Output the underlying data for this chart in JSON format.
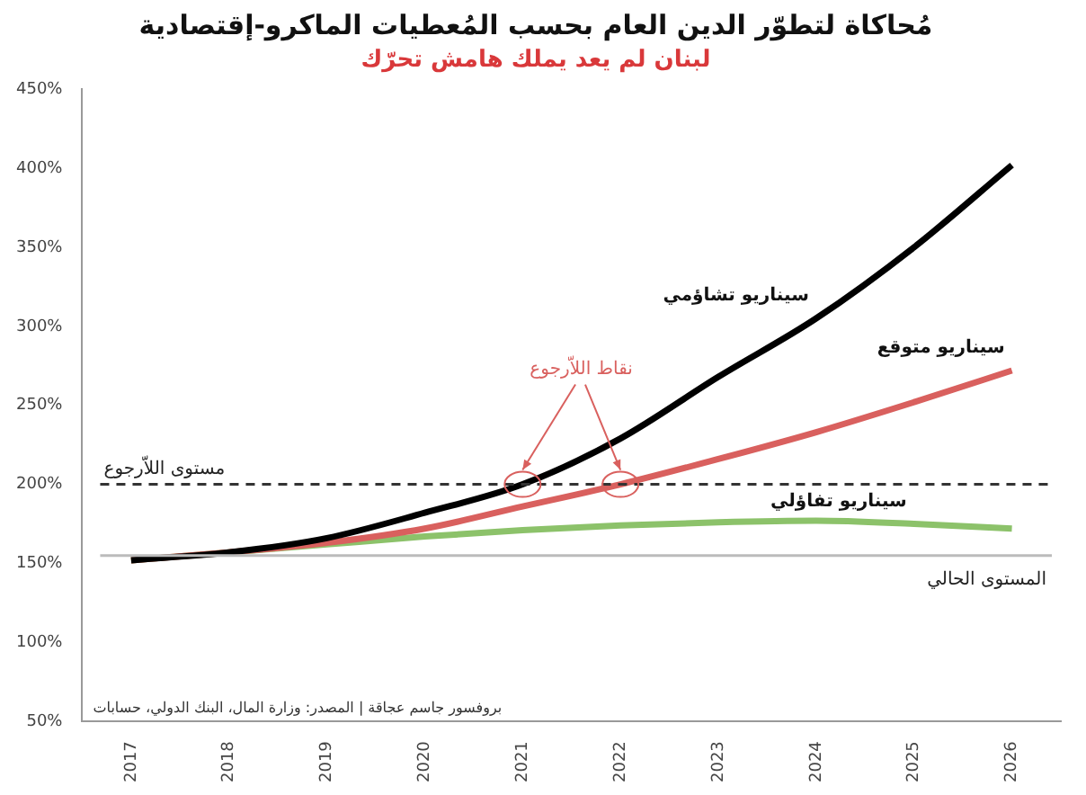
{
  "chart_data": {
    "type": "line",
    "title": "مُحاكاة لتطوّر الدين العام بحسب المُعطيات الماكرو-إقتصادية",
    "subtitle": "لبنان لم يعد يملك هامش تحرّك",
    "categories": [
      "2017",
      "2018",
      "2019",
      "2020",
      "2021",
      "2022",
      "2023",
      "2024",
      "2025",
      "2026"
    ],
    "series": [
      {
        "name": "سيناريو تشاؤمي",
        "color": "#000000",
        "values": [
          152,
          157,
          166,
          182,
          200,
          229,
          268,
          305,
          350,
          402
        ]
      },
      {
        "name": "سيناريو متوقع",
        "color": "#d9605e",
        "values": [
          152,
          157,
          163,
          172,
          186,
          200,
          216,
          233,
          252,
          272
        ]
      },
      {
        "name": "سيناريو تفاؤلي",
        "color": "#8cc26a",
        "values": [
          152,
          157,
          162,
          167,
          171,
          174,
          176,
          177,
          175,
          172
        ]
      }
    ],
    "ylim": [
      50,
      450
    ],
    "yticks": [
      {
        "value": 50,
        "label": "50%"
      },
      {
        "value": 100,
        "label": "100%"
      },
      {
        "value": 150,
        "label": "150%"
      },
      {
        "value": 200,
        "label": "200%"
      },
      {
        "value": 250,
        "label": "250%"
      },
      {
        "value": 300,
        "label": "300%"
      },
      {
        "value": 350,
        "label": "350%"
      },
      {
        "value": 400,
        "label": "400%"
      },
      {
        "value": 450,
        "label": "450%"
      }
    ],
    "ref_lines": [
      {
        "axis": "y",
        "value": 200,
        "label": "مستوى اللاّرجوع",
        "color": "#333333",
        "line_style": "dashed"
      },
      {
        "axis": "y",
        "value": 155,
        "label": "المستوى الحالي",
        "color": "#bbbbbb",
        "line_style": "solid"
      }
    ],
    "annotations": [
      {
        "text": "نقاط اللاّرجوع",
        "x": "2021",
        "y": 200
      },
      "بروفسور جاسم عجاقة | المصدر: وزارة المال، البنك الدولي، حسابات"
    ],
    "grid": false,
    "legend": false,
    "marker": "none",
    "line_style": "solid"
  }
}
